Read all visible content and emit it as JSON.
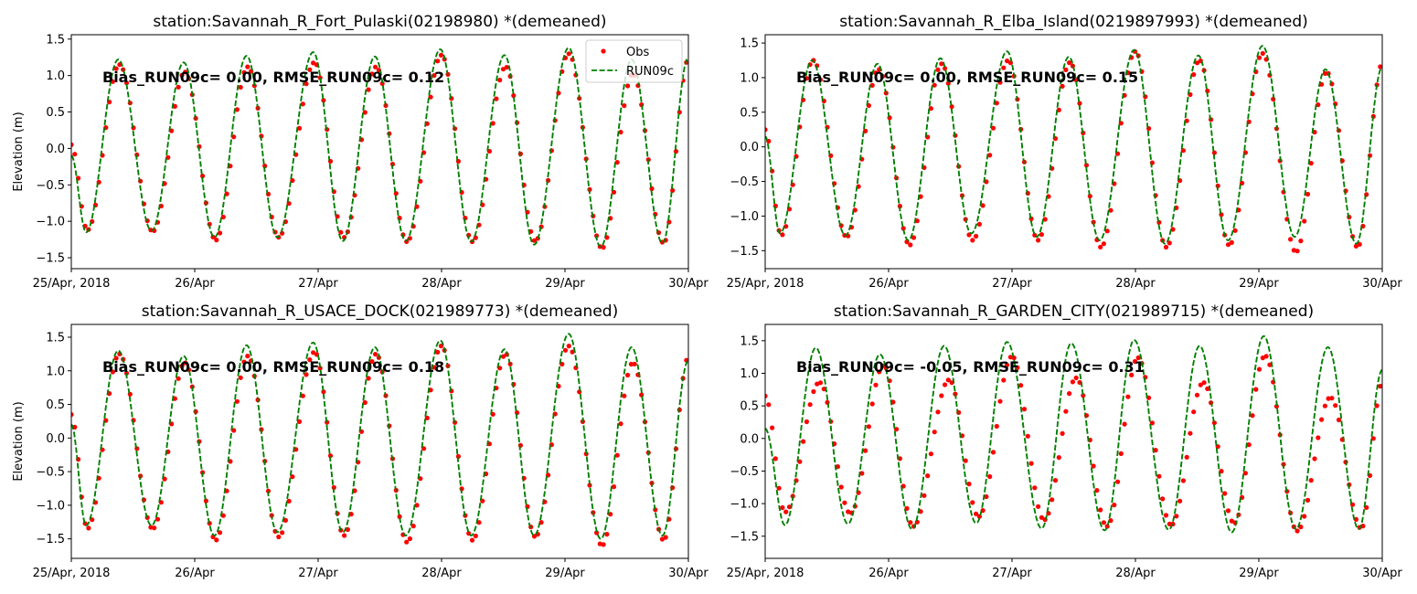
{
  "chart_data": [
    {
      "type": "line",
      "title": "station:Savannah_R_Fort_Pulaski(02198980) *(demeaned)",
      "ylabel": "Elevation (m)",
      "xlabel": "",
      "x_unit": "days since 25/Apr/2018 00:00",
      "xlim": [
        0,
        5
      ],
      "ylim": [
        -1.65,
        1.56
      ],
      "xticks": [
        0,
        1,
        2,
        3,
        4,
        5
      ],
      "xtick_labels": [
        "25/Apr, 2018",
        "26/Apr",
        "27/Apr",
        "28/Apr",
        "29/Apr",
        "30/Apr"
      ],
      "yticks": [
        -1.5,
        -1.0,
        -0.5,
        0.0,
        0.5,
        1.0,
        1.5
      ],
      "ytick_labels": [
        "−1.5",
        "−1.0",
        "−0.5",
        "0.0",
        "0.5",
        "1.0",
        "1.5"
      ],
      "annotation": "Bias_RUN09c=  0.00, RMSE_RUN09c=  0.12",
      "legend": {
        "placement": "top-right",
        "entries": [
          "Obs",
          "RUN09c"
        ]
      },
      "obs_sample_interval_days": 0.028,
      "series": [
        {
          "name": "Obs",
          "style": "dots",
          "color": "#ff0000",
          "extrema": [
            [
              0,
              0.05
            ],
            [
              0.13,
              -1.12
            ],
            [
              0.39,
              1.15
            ],
            [
              0.66,
              -1.14
            ],
            [
              0.92,
              1.05
            ],
            [
              1.17,
              -1.26
            ],
            [
              1.43,
              1.12
            ],
            [
              1.68,
              -1.22
            ],
            [
              1.97,
              1.18
            ],
            [
              2.21,
              -1.22
            ],
            [
              2.47,
              1.12
            ],
            [
              2.72,
              -1.28
            ],
            [
              3.0,
              1.28
            ],
            [
              3.25,
              -1.28
            ],
            [
              3.52,
              1.12
            ],
            [
              3.76,
              -1.27
            ],
            [
              4.03,
              1.3
            ],
            [
              4.3,
              -1.37
            ],
            [
              4.55,
              1.02
            ],
            [
              4.8,
              -1.3
            ],
            [
              5,
              1.22
            ]
          ]
        },
        {
          "name": "RUN09c",
          "style": "dashed",
          "color": "#008000",
          "extrema": [
            [
              0,
              -0.1
            ],
            [
              0.12,
              -1.15
            ],
            [
              0.38,
              1.22
            ],
            [
              0.65,
              -1.13
            ],
            [
              0.91,
              1.18
            ],
            [
              1.16,
              -1.22
            ],
            [
              1.42,
              1.27
            ],
            [
              1.67,
              -1.22
            ],
            [
              1.96,
              1.32
            ],
            [
              2.2,
              -1.27
            ],
            [
              2.46,
              1.26
            ],
            [
              2.71,
              -1.27
            ],
            [
              2.99,
              1.36
            ],
            [
              3.24,
              -1.28
            ],
            [
              3.51,
              1.28
            ],
            [
              3.75,
              -1.32
            ],
            [
              4.03,
              1.38
            ],
            [
              4.29,
              -1.35
            ],
            [
              4.54,
              1.22
            ],
            [
              4.79,
              -1.3
            ],
            [
              5,
              1.25
            ]
          ]
        }
      ]
    },
    {
      "type": "line",
      "title": "station:Savannah_R_Elba_Island(0219897993) *(demeaned)",
      "ylabel": "",
      "xlabel": "",
      "x_unit": "days since 25/Apr/2018 00:00",
      "xlim": [
        0,
        5
      ],
      "ylim": [
        -1.76,
        1.62
      ],
      "xticks": [
        0,
        1,
        2,
        3,
        4,
        5
      ],
      "xtick_labels": [
        "25/Apr, 2018",
        "26/Apr",
        "27/Apr",
        "28/Apr",
        "29/Apr",
        "30/Apr"
      ],
      "yticks": [
        -1.5,
        -1.0,
        -0.5,
        0.0,
        0.5,
        1.0,
        1.5
      ],
      "ytick_labels": [
        "−1.5",
        "−1.0",
        "−0.5",
        "0.0",
        "0.5",
        "1.0",
        "1.5"
      ],
      "annotation": "Bias_RUN09c=  0.00, RMSE_RUN09c=  0.15",
      "obs_sample_interval_days": 0.028,
      "series": [
        {
          "name": "Obs",
          "style": "dots",
          "color": "#ff0000",
          "extrema": [
            [
              0,
              0.25
            ],
            [
              0.13,
              -1.28
            ],
            [
              0.39,
              1.25
            ],
            [
              0.66,
              -1.3
            ],
            [
              0.92,
              1.12
            ],
            [
              1.17,
              -1.42
            ],
            [
              1.43,
              1.2
            ],
            [
              1.68,
              -1.35
            ],
            [
              1.97,
              1.25
            ],
            [
              2.21,
              -1.35
            ],
            [
              2.47,
              1.22
            ],
            [
              2.72,
              -1.45
            ],
            [
              3.0,
              1.38
            ],
            [
              3.25,
              -1.45
            ],
            [
              3.52,
              1.25
            ],
            [
              3.76,
              -1.42
            ],
            [
              4.03,
              1.35
            ],
            [
              4.3,
              -1.52
            ],
            [
              4.55,
              1.08
            ],
            [
              4.8,
              -1.45
            ],
            [
              5,
              1.2
            ]
          ]
        },
        {
          "name": "RUN09c",
          "style": "dashed",
          "color": "#008000",
          "extrema": [
            [
              0,
              0.15
            ],
            [
              0.12,
              -1.25
            ],
            [
              0.38,
              1.25
            ],
            [
              0.65,
              -1.28
            ],
            [
              0.91,
              1.2
            ],
            [
              1.16,
              -1.35
            ],
            [
              1.42,
              1.28
            ],
            [
              1.67,
              -1.25
            ],
            [
              1.96,
              1.38
            ],
            [
              2.2,
              -1.3
            ],
            [
              2.46,
              1.3
            ],
            [
              2.71,
              -1.35
            ],
            [
              2.99,
              1.4
            ],
            [
              3.24,
              -1.4
            ],
            [
              3.51,
              1.32
            ],
            [
              3.75,
              -1.35
            ],
            [
              4.03,
              1.46
            ],
            [
              4.29,
              -1.3
            ],
            [
              4.54,
              1.12
            ],
            [
              4.79,
              -1.4
            ],
            [
              5,
              1.15
            ]
          ]
        }
      ]
    },
    {
      "type": "line",
      "title": "station:Savannah_R_USACE_DOCK(021989773) *(demeaned)",
      "ylabel": "Elevation (m)",
      "xlabel": "",
      "x_unit": "days since 25/Apr/2018 00:00",
      "xlim": [
        0,
        5
      ],
      "ylim": [
        -1.79,
        1.69
      ],
      "xticks": [
        0,
        1,
        2,
        3,
        4,
        5
      ],
      "xtick_labels": [
        "25/Apr, 2018",
        "26/Apr",
        "27/Apr",
        "28/Apr",
        "29/Apr",
        "30/Apr"
      ],
      "yticks": [
        -1.5,
        -1.0,
        -0.5,
        0.0,
        0.5,
        1.0,
        1.5
      ],
      "ytick_labels": [
        "−1.5",
        "−1.0",
        "−0.5",
        "0.0",
        "0.5",
        "1.0",
        "1.5"
      ],
      "annotation": "Bias_RUN09c=  0.00, RMSE_RUN09c=  0.18",
      "obs_sample_interval_days": 0.028,
      "series": [
        {
          "name": "Obs",
          "style": "dots",
          "color": "#ff0000",
          "extrema": [
            [
              0,
              0.35
            ],
            [
              0.13,
              -1.35
            ],
            [
              0.39,
              1.25
            ],
            [
              0.66,
              -1.35
            ],
            [
              0.92,
              1.12
            ],
            [
              1.17,
              -1.52
            ],
            [
              1.43,
              1.22
            ],
            [
              1.68,
              -1.47
            ],
            [
              1.97,
              1.28
            ],
            [
              2.21,
              -1.45
            ],
            [
              2.47,
              1.25
            ],
            [
              2.72,
              -1.55
            ],
            [
              3.0,
              1.37
            ],
            [
              3.25,
              -1.52
            ],
            [
              3.52,
              1.25
            ],
            [
              3.76,
              -1.47
            ],
            [
              4.03,
              1.37
            ],
            [
              4.3,
              -1.6
            ],
            [
              4.55,
              1.12
            ],
            [
              4.8,
              -1.52
            ],
            [
              5,
              1.2
            ]
          ]
        },
        {
          "name": "RUN09c",
          "style": "dashed",
          "color": "#008000",
          "extrema": [
            [
              0,
              0.2
            ],
            [
              0.12,
              -1.3
            ],
            [
              0.38,
              1.3
            ],
            [
              0.65,
              -1.3
            ],
            [
              0.91,
              1.22
            ],
            [
              1.16,
              -1.45
            ],
            [
              1.42,
              1.38
            ],
            [
              1.67,
              -1.4
            ],
            [
              1.96,
              1.42
            ],
            [
              2.2,
              -1.4
            ],
            [
              2.46,
              1.35
            ],
            [
              2.71,
              -1.45
            ],
            [
              2.99,
              1.45
            ],
            [
              3.24,
              -1.45
            ],
            [
              3.51,
              1.32
            ],
            [
              3.75,
              -1.45
            ],
            [
              4.03,
              1.55
            ],
            [
              4.29,
              -1.5
            ],
            [
              4.54,
              1.35
            ],
            [
              4.79,
              -1.45
            ],
            [
              5,
              1.15
            ]
          ]
        }
      ]
    },
    {
      "type": "line",
      "title": "station:Savannah_R_GARDEN_CITY(021989715) *(demeaned)",
      "ylabel": "",
      "xlabel": "",
      "x_unit": "days since 25/Apr/2018 00:00",
      "xlim": [
        0,
        5
      ],
      "ylim": [
        -1.84,
        1.75
      ],
      "xticks": [
        0,
        1,
        2,
        3,
        4,
        5
      ],
      "xtick_labels": [
        "25/Apr, 2018",
        "26/Apr",
        "27/Apr",
        "28/Apr",
        "29/Apr",
        "30/Apr"
      ],
      "yticks": [
        -1.5,
        -1.0,
        -0.5,
        0.0,
        0.5,
        1.0,
        1.5
      ],
      "ytick_labels": [
        "−1.5",
        "−1.0",
        "−0.5",
        "0.0",
        "0.5",
        "1.0",
        "1.5"
      ],
      "annotation": "Bias_RUN09c= -0.05, RMSE_RUN09c=  0.31",
      "obs_sample_interval_days": 0.028,
      "series": [
        {
          "name": "Obs",
          "style": "dots",
          "color": "#ff0000",
          "extrema": [
            [
              0,
              0.65
            ],
            [
              0.16,
              -1.13
            ],
            [
              0.44,
              0.86
            ],
            [
              0.69,
              -1.15
            ],
            [
              0.96,
              1.12
            ],
            [
              1.2,
              -1.35
            ],
            [
              1.49,
              0.9
            ],
            [
              1.73,
              -1.2
            ],
            [
              2.0,
              1.26
            ],
            [
              2.26,
              -1.25
            ],
            [
              2.52,
              0.93
            ],
            [
              2.77,
              -1.35
            ],
            [
              3.02,
              1.24
            ],
            [
              3.29,
              -1.33
            ],
            [
              3.55,
              0.86
            ],
            [
              3.8,
              -1.3
            ],
            [
              4.05,
              1.27
            ],
            [
              4.31,
              -1.42
            ],
            [
              4.58,
              0.63
            ],
            [
              4.83,
              -1.38
            ],
            [
              5,
              0.85
            ]
          ]
        },
        {
          "name": "RUN09c",
          "style": "dashed",
          "color": "#008000",
          "extrema": [
            [
              0,
              0.15
            ],
            [
              0.16,
              -1.33
            ],
            [
              0.41,
              1.39
            ],
            [
              0.67,
              -1.31
            ],
            [
              0.93,
              1.29
            ],
            [
              1.19,
              -1.39
            ],
            [
              1.45,
              1.42
            ],
            [
              1.71,
              -1.3
            ],
            [
              1.96,
              1.48
            ],
            [
              2.24,
              -1.38
            ],
            [
              2.48,
              1.46
            ],
            [
              2.75,
              -1.41
            ],
            [
              2.99,
              1.51
            ],
            [
              3.27,
              -1.4
            ],
            [
              3.52,
              1.42
            ],
            [
              3.78,
              -1.44
            ],
            [
              4.04,
              1.57
            ],
            [
              4.3,
              -1.39
            ],
            [
              4.56,
              1.4
            ],
            [
              4.81,
              -1.39
            ],
            [
              5,
              1.05
            ]
          ]
        }
      ]
    }
  ]
}
